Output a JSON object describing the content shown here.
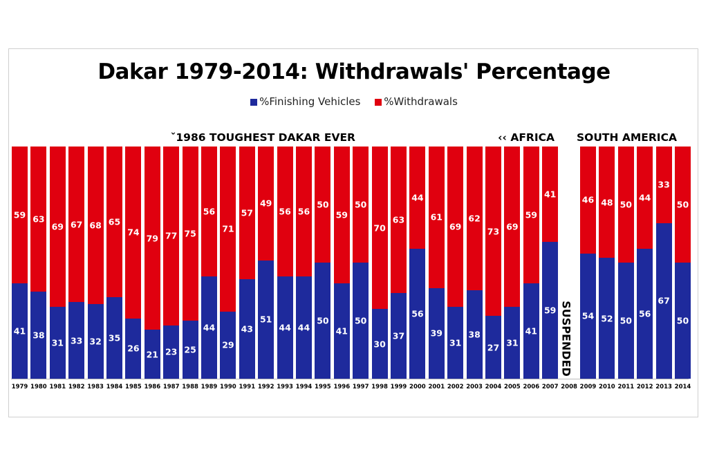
{
  "chart_data": {
    "type": "bar",
    "stacked": true,
    "title": "Dakar 1979-2014: Withdrawals' Percentage",
    "legend": {
      "placement": "top-center",
      "entries": [
        "%Finishing Vehicles",
        "%Withdrawals"
      ]
    },
    "colors": {
      "finishing": "#1e2a9c",
      "withdrawals": "#e0000f"
    },
    "ylim": [
      0,
      100
    ],
    "categories": [
      "1979",
      "1980",
      "1981",
      "1982",
      "1983",
      "1984",
      "1985",
      "1986",
      "1987",
      "1988",
      "1989",
      "1990",
      "1991",
      "1992",
      "1993",
      "1994",
      "1995",
      "1996",
      "1997",
      "1998",
      "1999",
      "2000",
      "2001",
      "2002",
      "2003",
      "2004",
      "2005",
      "2006",
      "2007",
      "2008",
      "2009",
      "2010",
      "2011",
      "2012",
      "2013",
      "2014"
    ],
    "series": [
      {
        "name": "%Finishing Vehicles",
        "values": [
          41,
          38,
          31,
          33,
          32,
          35,
          26,
          21,
          23,
          25,
          44,
          29,
          43,
          51,
          44,
          44,
          50,
          41,
          50,
          30,
          37,
          56,
          39,
          31,
          38,
          27,
          31,
          41,
          59,
          null,
          54,
          52,
          50,
          56,
          67,
          50
        ]
      },
      {
        "name": "%Withdrawals",
        "values": [
          59,
          63,
          69,
          67,
          68,
          65,
          74,
          79,
          77,
          75,
          56,
          71,
          57,
          49,
          56,
          56,
          50,
          59,
          50,
          70,
          63,
          44,
          61,
          69,
          62,
          73,
          69,
          59,
          41,
          null,
          46,
          48,
          50,
          44,
          33,
          50
        ]
      }
    ],
    "annotations": {
      "toughest": "ˇ1986 TOUGHEST DAKAR EVER",
      "africa": "‹‹ AFRICA",
      "south_america": "SOUTH AMERICA",
      "suspended": "SUSPENDED"
    }
  }
}
